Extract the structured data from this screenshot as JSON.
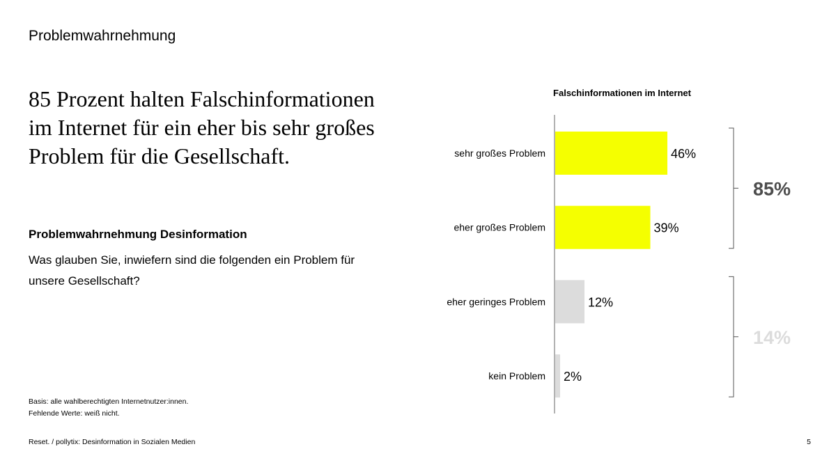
{
  "slide": {
    "section_label": "Problemwahrnehmung",
    "headline": "85 Prozent halten Falschinformationen im Internet für ein eher bis sehr großes Problem für die Gesellschaft.",
    "question_title": "Problemwahrnehmung Desinformation",
    "question_text": "Was glauben Sie, inwiefern sind die folgenden ein Problem für unsere Gesellschaft?",
    "basis_line1": "Basis: alle wahlberechtigten Internetnutzer:innen.",
    "basis_line2": "Fehlende Werte: weiß nicht.",
    "footer_source": "Reset. / pollytix: Desinformation in Sozialen Medien",
    "page_number": "5"
  },
  "chart_data": {
    "type": "bar",
    "orientation": "horizontal",
    "title": "Falschinformationen im Internet",
    "categories": [
      "sehr großes Problem",
      "eher großes Problem",
      "eher geringes Problem",
      "kein Problem"
    ],
    "values": [
      46,
      39,
      12,
      2
    ],
    "value_labels": [
      "46%",
      "39%",
      "12%",
      "2%"
    ],
    "bar_colors": [
      "#f5ff00",
      "#f5ff00",
      "#dcdcdc",
      "#dcdcdc"
    ],
    "xlim": [
      0,
      100
    ],
    "groups": [
      {
        "label": "85%",
        "categories": [
          "sehr großes Problem",
          "eher großes Problem"
        ],
        "color": "#4d4d4d"
      },
      {
        "label": "14%",
        "categories": [
          "eher geringes Problem",
          "kein Problem"
        ],
        "color": "#dcdcdc"
      }
    ],
    "grid": false,
    "legend": "none"
  }
}
